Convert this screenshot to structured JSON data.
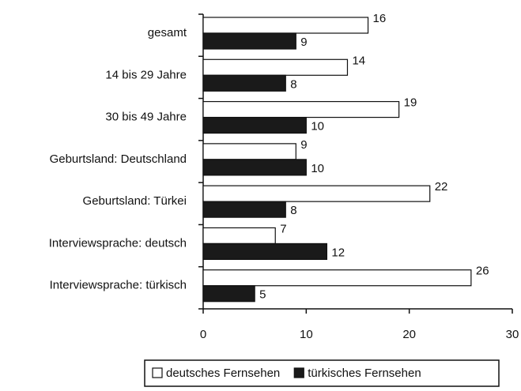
{
  "chart_data": {
    "type": "bar",
    "orientation": "horizontal",
    "categories": [
      "gesamt",
      "14 bis 29 Jahre",
      "30 bis 49 Jahre",
      "Geburtsland: Deutschland",
      "Geburtsland: Türkei",
      "Interviewsprache: deutsch",
      "Interviewsprache: türkisch"
    ],
    "series": [
      {
        "name": "deutsches Fernsehen",
        "color": "#ffffff",
        "values": [
          16,
          14,
          19,
          9,
          22,
          7,
          26
        ]
      },
      {
        "name": "türkisches Fernsehen",
        "color": "#1a1a1a",
        "values": [
          9,
          8,
          10,
          10,
          8,
          12,
          5
        ]
      }
    ],
    "xlim": [
      0,
      30
    ],
    "xticks": [
      0,
      10,
      20,
      30
    ],
    "grid": false,
    "legend": "bottom"
  }
}
